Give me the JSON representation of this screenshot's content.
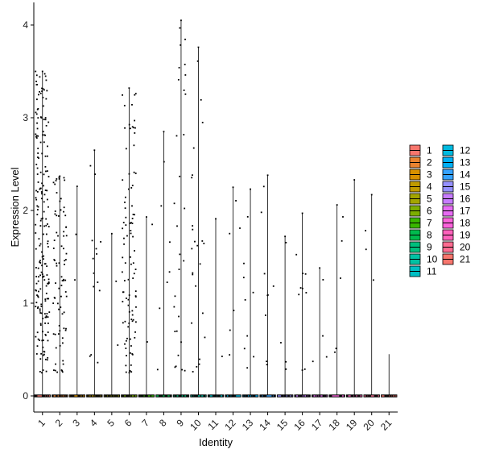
{
  "chart_data": {
    "type": "violin",
    "xlabel": "Identity",
    "ylabel": "Expression Level",
    "categories": [
      "1",
      "2",
      "3",
      "4",
      "5",
      "6",
      "7",
      "8",
      "9",
      "10",
      "11",
      "12",
      "13",
      "14",
      "15",
      "16",
      "17",
      "18",
      "19",
      "20",
      "21"
    ],
    "ylim": [
      -0.18,
      4.25
    ],
    "yticks": [
      0,
      1,
      2,
      3,
      4
    ],
    "max_values": [
      3.5,
      2.37,
      2.26,
      2.65,
      1.75,
      3.32,
      1.93,
      2.85,
      4.05,
      3.76,
      1.91,
      2.25,
      2.23,
      2.38,
      1.72,
      1.97,
      1.38,
      2.06,
      2.33,
      2.17,
      0.45
    ],
    "nonzero_counts": [
      200,
      80,
      3,
      15,
      3,
      95,
      3,
      8,
      30,
      25,
      2,
      7,
      10,
      10,
      5,
      10,
      5,
      6,
      1,
      4,
      0
    ],
    "colors": [
      "#F8766D",
      "#EA8331",
      "#D89000",
      "#C09B00",
      "#A3A500",
      "#7CAE00",
      "#39B600",
      "#00BB4E",
      "#00BF7D",
      "#00C1A3",
      "#00BFC4",
      "#00BAE0",
      "#00B0F6",
      "#35A2FF",
      "#9590FF",
      "#C77CFF",
      "#E76BF3",
      "#FA62DB",
      "#FF62BC",
      "#FF6C91",
      "#F8766D"
    ],
    "legend": {
      "entries": [
        "1",
        "2",
        "3",
        "4",
        "5",
        "6",
        "7",
        "8",
        "9",
        "10",
        "11",
        "12",
        "13",
        "14",
        "15",
        "16",
        "17",
        "18",
        "19",
        "20",
        "21"
      ],
      "placement": "right",
      "columns": 2
    },
    "grid": false
  }
}
